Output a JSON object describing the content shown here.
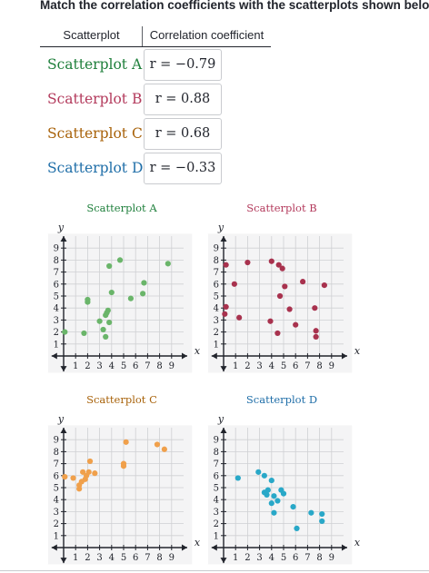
{
  "question": "Match the correlation coefficients with the scatterplots shown below.",
  "table": {
    "headers": [
      "Scatterplot",
      "Correlation coefficient"
    ],
    "rows": [
      {
        "label": "Scatterplot A",
        "value": "r = −0.79",
        "color": "#1e7f3b"
      },
      {
        "label": "Scatterplot B",
        "value": "r = 0.88",
        "color": "#b33a5c"
      },
      {
        "label": "Scatterplot C",
        "value": "r = 0.68",
        "color": "#a8620a"
      },
      {
        "label": "Scatterplot D",
        "value": "r = −0.33",
        "color": "#1f6ea8"
      }
    ]
  },
  "chart_data": [
    {
      "type": "scatter",
      "title": "Scatterplot A",
      "title_color": "#1e7f3b",
      "point_color": "#6ab56a",
      "xlabel": "x",
      "ylabel": "y",
      "xlim": [
        0,
        10
      ],
      "ylim": [
        0,
        10
      ],
      "xticks": [
        "1",
        "2",
        "3",
        "4",
        "5",
        "6",
        "7",
        "8",
        "9"
      ],
      "yticks": [
        "1",
        "2",
        "3",
        "4",
        "5",
        "6",
        "7",
        "8",
        "9"
      ],
      "grid": true,
      "points": [
        [
          0.1,
          2.0
        ],
        [
          2.0,
          4.5
        ],
        [
          2.0,
          4.7
        ],
        [
          1.7,
          1.9
        ],
        [
          3.0,
          2.9
        ],
        [
          3.3,
          2.2
        ],
        [
          3.5,
          1.6
        ],
        [
          3.5,
          3.4
        ],
        [
          3.6,
          3.6
        ],
        [
          3.7,
          3.8
        ],
        [
          3.8,
          2.8
        ],
        [
          3.8,
          7.5
        ],
        [
          4.0,
          5.3
        ],
        [
          4.7,
          8.0
        ],
        [
          5.6,
          4.8
        ],
        [
          6.6,
          5.2
        ],
        [
          6.7,
          6.1
        ],
        [
          8.7,
          7.7
        ]
      ]
    },
    {
      "type": "scatter",
      "title": "Scatterplot B",
      "title_color": "#b33a5c",
      "point_color": "#a8324e",
      "xlabel": "x",
      "ylabel": "y",
      "xlim": [
        0,
        10
      ],
      "ylim": [
        0,
        10
      ],
      "xticks": [
        "1",
        "2",
        "3",
        "4",
        "5",
        "6",
        "7",
        "8",
        "9"
      ],
      "yticks": [
        "1",
        "2",
        "3",
        "4",
        "5",
        "6",
        "7",
        "8",
        "9"
      ],
      "grid": true,
      "points": [
        [
          0.2,
          7.6
        ],
        [
          0.2,
          4.1
        ],
        [
          0.1,
          3.5
        ],
        [
          0.9,
          6.0
        ],
        [
          1.3,
          3.2
        ],
        [
          2.0,
          7.8
        ],
        [
          3.9,
          2.9
        ],
        [
          4.0,
          7.9
        ],
        [
          4.6,
          7.6
        ],
        [
          4.9,
          7.3
        ],
        [
          4.5,
          1.9
        ],
        [
          4.7,
          5.0
        ],
        [
          5.1,
          5.8
        ],
        [
          5.5,
          3.9
        ],
        [
          6.0,
          2.6
        ],
        [
          6.6,
          6.2
        ],
        [
          7.6,
          4.0
        ],
        [
          7.7,
          2.1
        ],
        [
          7.7,
          1.6
        ],
        [
          8.4,
          5.9
        ]
      ]
    },
    {
      "type": "scatter",
      "title": "Scatterplot C",
      "title_color": "#a8620a",
      "point_color": "#f0a04b",
      "xlabel": "x",
      "ylabel": "y",
      "xlim": [
        0,
        10
      ],
      "ylim": [
        0,
        10
      ],
      "xticks": [
        "1",
        "2",
        "3",
        "4",
        "5",
        "6",
        "7",
        "8",
        "9"
      ],
      "yticks": [
        "1",
        "2",
        "3",
        "4",
        "5",
        "6",
        "7",
        "8",
        "9"
      ],
      "grid": true,
      "points": [
        [
          0.1,
          5.9
        ],
        [
          0.8,
          5.8
        ],
        [
          1.3,
          4.9
        ],
        [
          1.3,
          5.2
        ],
        [
          1.5,
          5.5
        ],
        [
          1.6,
          6.3
        ],
        [
          1.9,
          6.0
        ],
        [
          1.8,
          5.7
        ],
        [
          2.1,
          6.3
        ],
        [
          2.2,
          7.2
        ],
        [
          2.6,
          6.2
        ],
        [
          5.0,
          6.8
        ],
        [
          5.0,
          7.0
        ],
        [
          5.2,
          8.8
        ],
        [
          7.8,
          8.6
        ],
        [
          8.4,
          8.2
        ]
      ]
    },
    {
      "type": "scatter",
      "title": "Scatterplot D",
      "title_color": "#1f6ea8",
      "point_color": "#29a8c8",
      "xlabel": "x",
      "ylabel": "y",
      "xlim": [
        0,
        10
      ],
      "ylim": [
        0,
        10
      ],
      "xticks": [
        "1",
        "2",
        "3",
        "4",
        "5",
        "6",
        "7",
        "8",
        "9"
      ],
      "yticks": [
        "1",
        "2",
        "3",
        "4",
        "5",
        "6",
        "7",
        "8",
        "9"
      ],
      "grid": true,
      "points": [
        [
          1.2,
          5.8
        ],
        [
          2.9,
          6.3
        ],
        [
          3.4,
          6.0
        ],
        [
          3.4,
          4.6
        ],
        [
          3.6,
          4.4
        ],
        [
          3.7,
          4.8
        ],
        [
          4.0,
          5.6
        ],
        [
          4.0,
          3.7
        ],
        [
          4.2,
          4.3
        ],
        [
          4.5,
          3.9
        ],
        [
          4.8,
          4.8
        ],
        [
          5.0,
          4.5
        ],
        [
          4.2,
          2.9
        ],
        [
          5.8,
          3.4
        ],
        [
          6.1,
          1.6
        ],
        [
          7.3,
          2.9
        ],
        [
          8.2,
          2.8
        ],
        [
          8.2,
          2.2
        ]
      ]
    }
  ]
}
